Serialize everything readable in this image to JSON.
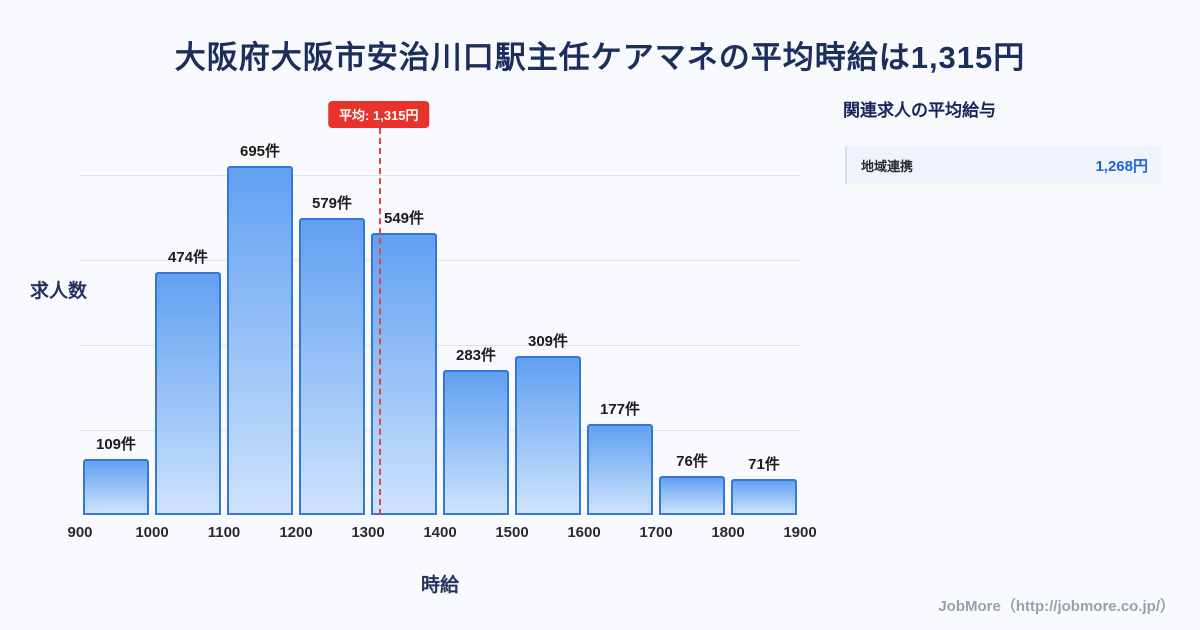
{
  "title": "大阪府大阪市安治川口駅主任ケアマネの平均時給は1,315円",
  "chart_data": {
    "type": "bar",
    "title": "大阪府大阪市安治川口駅主任ケアマネの平均時給は1,315円",
    "categories": [
      "900-1000",
      "1000-1100",
      "1100-1200",
      "1200-1300",
      "1300-1400",
      "1400-1500",
      "1500-1600",
      "1600-1700",
      "1700-1800",
      "1800-1900"
    ],
    "values": [
      109,
      474,
      695,
      579,
      549,
      283,
      309,
      177,
      76,
      71
    ],
    "value_suffix": "件",
    "x_ticks": [
      "900",
      "1000",
      "1100",
      "1200",
      "1300",
      "1400",
      "1500",
      "1600",
      "1700",
      "1800",
      "1900"
    ],
    "xlim": [
      900,
      1900
    ],
    "ylim": [
      0,
      730
    ],
    "xlabel": "時給",
    "ylabel": "求人数",
    "grid": "horizontal",
    "legend": "none",
    "average": {
      "value": 1315,
      "label": "平均: 1,315円"
    }
  },
  "side_panel": {
    "heading": "関連求人の平均給与",
    "items": [
      {
        "label": "地域連携",
        "value": "1,268円"
      }
    ]
  },
  "footer": {
    "credit": "JobMore（http://jobmore.co.jp/）"
  },
  "colors": {
    "background": "#f8fafd",
    "title": "#1b2e5c",
    "bar_border": "#3477d6",
    "bar_fill_top": "#61a0f1",
    "bar_fill_bottom": "#cfe3fd",
    "average_red": "#e8332c",
    "side_value_blue": "#1f63d2",
    "footer_gray": "#97a1ab"
  }
}
